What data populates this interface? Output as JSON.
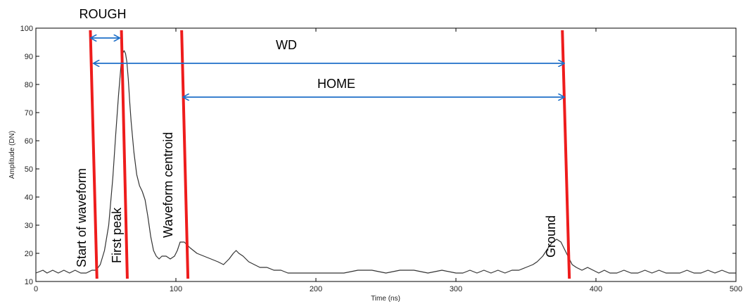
{
  "chart_data": {
    "type": "line",
    "title": "",
    "xlabel": "Time (ns)",
    "ylabel": "Amplitude (DN)",
    "xlim": [
      0,
      500
    ],
    "ylim": [
      10,
      100
    ],
    "xticks": [
      0,
      100,
      200,
      300,
      400,
      500
    ],
    "yticks": [
      10,
      20,
      30,
      40,
      50,
      60,
      70,
      80,
      90,
      100
    ],
    "grid": false,
    "colors": {
      "line": "#333333",
      "marker": "#ee1c1c",
      "arrow": "#1f6fc8"
    },
    "series": [
      {
        "x": [
          0,
          5,
          8,
          12,
          16,
          20,
          24,
          28,
          32,
          36,
          40,
          43,
          46,
          49,
          52,
          55,
          57,
          59,
          61,
          62,
          63,
          64,
          65,
          66,
          67,
          68,
          70,
          72,
          74,
          76,
          78,
          80,
          82,
          84,
          86,
          88,
          90,
          93,
          96,
          99,
          101,
          103,
          106,
          110,
          115,
          120,
          125,
          130,
          134,
          138,
          141,
          143,
          145,
          148,
          152,
          156,
          160,
          165,
          170,
          175,
          180,
          190,
          200,
          210,
          220,
          230,
          240,
          250,
          260,
          270,
          280,
          290,
          300,
          305,
          310,
          315,
          320,
          325,
          330,
          335,
          340,
          345,
          350,
          355,
          358,
          362,
          366,
          369,
          372,
          375,
          377,
          379,
          381,
          383,
          386,
          390,
          394,
          398,
          402,
          406,
          410,
          415,
          420,
          425,
          430,
          435,
          440,
          445,
          450,
          455,
          460,
          465,
          470,
          475,
          480,
          485,
          490,
          495,
          500
        ],
        "y": [
          13,
          14,
          13,
          14,
          13,
          14,
          13,
          14,
          13,
          13,
          14,
          14,
          16,
          21,
          30,
          47,
          62,
          76,
          88,
          91,
          92,
          91,
          88,
          82,
          74,
          67,
          56,
          48,
          44,
          42,
          39,
          33,
          26,
          21,
          19,
          18,
          19,
          19,
          18,
          19,
          21,
          24,
          24,
          22,
          20,
          19,
          18,
          17,
          16,
          18,
          20,
          21,
          20,
          19,
          17,
          16,
          15,
          15,
          14,
          14,
          13,
          13,
          13,
          13,
          13,
          14,
          14,
          13,
          14,
          14,
          13,
          14,
          13,
          13,
          14,
          13,
          14,
          13,
          14,
          13,
          14,
          14,
          15,
          16,
          17,
          19,
          22,
          24,
          25,
          24,
          22,
          20,
          18,
          16,
          15,
          14,
          15,
          14,
          13,
          14,
          13,
          13,
          14,
          13,
          13,
          14,
          13,
          14,
          13,
          13,
          13,
          14,
          13,
          13,
          14,
          13,
          14,
          13,
          13
        ]
      }
    ],
    "markers": [
      {
        "label": "Start of waveform",
        "x_top": 38.9,
        "x_bottom": 43.6
      },
      {
        "label": "First peak",
        "x_top": 61.1,
        "x_bottom": 65.3
      },
      {
        "label": "Waveform centroid",
        "x_top": 104.1,
        "x_bottom": 108.6
      },
      {
        "label": "Ground",
        "x_top": 376.0,
        "x_bottom": 381.0
      }
    ],
    "annotations": [
      {
        "label": "ROUGH",
        "x_start": 39.5,
        "x_end": 59.5,
        "y": 96.5
      },
      {
        "label": "WD",
        "x_start": 41.5,
        "x_end": 377.0,
        "y": 87.5
      },
      {
        "label": "HOME",
        "x_start": 105.5,
        "x_end": 377.0,
        "y": 75.5
      }
    ]
  }
}
